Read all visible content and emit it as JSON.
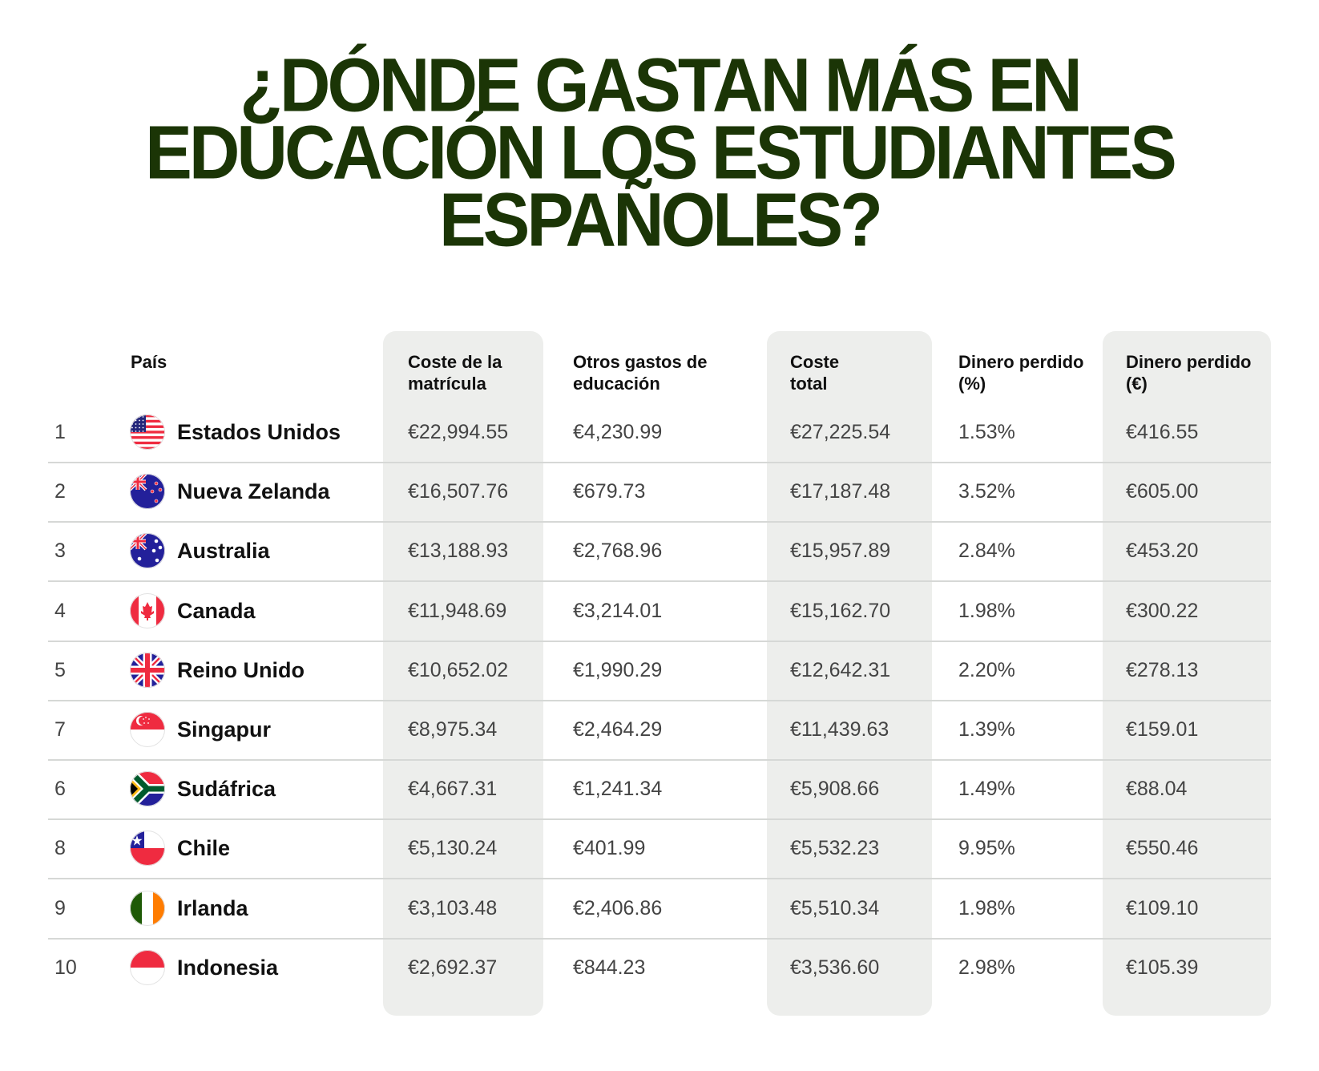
{
  "title": {
    "lines": [
      "¿Dónde gastan más en",
      "educación los estudiantes",
      "españoles?"
    ]
  },
  "colors": {
    "title": "#1b3506",
    "highlight_column": "#edeeec"
  },
  "table": {
    "headers": {
      "country": "País",
      "tuition": "Coste de la matrícula",
      "other": "Otros gastos de educación",
      "total": "Coste total",
      "lost_pct": "Dinero perdido (%)",
      "lost_eur": "Dinero perdido (€)"
    },
    "header_lines": {
      "tuition": [
        "Coste de la",
        "matrícula"
      ],
      "other": [
        "Otros gastos de",
        "educación"
      ],
      "total": [
        "Coste",
        "total"
      ],
      "lost_pct": [
        "Dinero perdido",
        "(%)"
      ],
      "lost_eur": [
        "Dinero perdido",
        "(€)"
      ]
    },
    "rows": [
      {
        "rank": "1",
        "country": "Estados Unidos",
        "flag": "us",
        "tuition": "€22,994.55",
        "other": "€4,230.99",
        "total": "€27,225.54",
        "lost_pct": "1.53%",
        "lost_eur": "€416.55"
      },
      {
        "rank": "2",
        "country": "Nueva Zelanda",
        "flag": "nz",
        "tuition": "€16,507.76",
        "other": "€679.73",
        "total": "€17,187.48",
        "lost_pct": "3.52%",
        "lost_eur": "€605.00"
      },
      {
        "rank": "3",
        "country": "Australia",
        "flag": "au",
        "tuition": "€13,188.93",
        "other": "€2,768.96",
        "total": "€15,957.89",
        "lost_pct": "2.84%",
        "lost_eur": "€453.20"
      },
      {
        "rank": "4",
        "country": "Canada",
        "flag": "ca",
        "tuition": "€11,948.69",
        "other": "€3,214.01",
        "total": "€15,162.70",
        "lost_pct": "1.98%",
        "lost_eur": "€300.22"
      },
      {
        "rank": "5",
        "country": "Reino Unido",
        "flag": "gb",
        "tuition": "€10,652.02",
        "other": "€1,990.29",
        "total": "€12,642.31",
        "lost_pct": "2.20%",
        "lost_eur": "€278.13"
      },
      {
        "rank": "7",
        "country": "Singapur",
        "flag": "sg",
        "tuition": "€8,975.34",
        "other": "€2,464.29",
        "total": "€11,439.63",
        "lost_pct": "1.39%",
        "lost_eur": "€159.01"
      },
      {
        "rank": "6",
        "country": "Sudáfrica",
        "flag": "za",
        "tuition": "€4,667.31",
        "other": "€1,241.34",
        "total": "€5,908.66",
        "lost_pct": "1.49%",
        "lost_eur": "€88.04"
      },
      {
        "rank": "8",
        "country": "Chile",
        "flag": "cl",
        "tuition": "€5,130.24",
        "other": "€401.99",
        "total": "€5,532.23",
        "lost_pct": "9.95%",
        "lost_eur": "€550.46"
      },
      {
        "rank": "9",
        "country": "Irlanda",
        "flag": "ie",
        "tuition": "€3,103.48",
        "other": "€2,406.86",
        "total": "€5,510.34",
        "lost_pct": "1.98%",
        "lost_eur": "€109.10"
      },
      {
        "rank": "10",
        "country": "Indonesia",
        "flag": "id",
        "tuition": "€2,692.37",
        "other": "€844.23",
        "total": "€3,536.60",
        "lost_pct": "2.98%",
        "lost_eur": "€105.39"
      }
    ]
  }
}
